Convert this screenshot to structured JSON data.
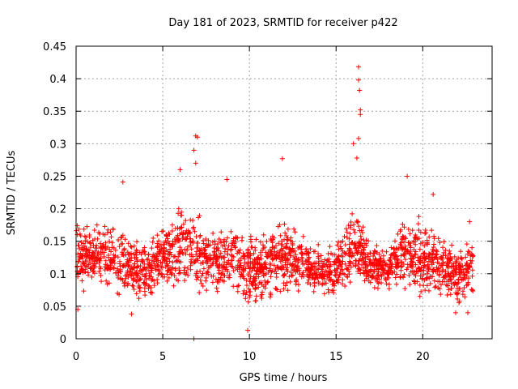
{
  "chart_data": {
    "type": "scatter",
    "title": "Day 181 of 2023, SRMTID for receiver p422",
    "xlabel": "GPS time / hours",
    "ylabel": "SRMTID / TECUs",
    "xlim": [
      0,
      24
    ],
    "ylim": [
      0,
      0.45
    ],
    "xticks": [
      0,
      5,
      10,
      15,
      20
    ],
    "yticks": [
      0,
      0.05,
      0.1,
      0.15,
      0.2,
      0.25,
      0.3,
      0.35,
      0.4,
      0.45
    ],
    "xtick_labels": [
      "0",
      "5",
      "10",
      "15",
      "20"
    ],
    "ytick_labels": [
      "0",
      "0.05",
      "0.1",
      "0.15",
      "0.2",
      "0.25",
      "0.3",
      "0.35",
      "0.4",
      "0.45"
    ],
    "grid": true,
    "marker": "+",
    "color": "#ff0000",
    "x_extent_hours": [
      0,
      22.9
    ],
    "notable_points": [
      {
        "x": 6.8,
        "y": 0.0
      },
      {
        "x": 9.9,
        "y": 0.013
      },
      {
        "x": 6.0,
        "y": 0.26
      },
      {
        "x": 6.9,
        "y": 0.312
      },
      {
        "x": 7.0,
        "y": 0.31
      },
      {
        "x": 6.8,
        "y": 0.29
      },
      {
        "x": 6.9,
        "y": 0.27
      },
      {
        "x": 8.7,
        "y": 0.245
      },
      {
        "x": 11.9,
        "y": 0.277
      },
      {
        "x": 16.3,
        "y": 0.418
      },
      {
        "x": 16.3,
        "y": 0.398
      },
      {
        "x": 16.35,
        "y": 0.382
      },
      {
        "x": 16.4,
        "y": 0.352
      },
      {
        "x": 16.4,
        "y": 0.345
      },
      {
        "x": 16.3,
        "y": 0.308
      },
      {
        "x": 16.2,
        "y": 0.278
      },
      {
        "x": 16.0,
        "y": 0.3
      },
      {
        "x": 2.7,
        "y": 0.241
      },
      {
        "x": 19.1,
        "y": 0.25
      },
      {
        "x": 20.6,
        "y": 0.222
      },
      {
        "x": 22.7,
        "y": 0.18
      },
      {
        "x": 22.6,
        "y": 0.04
      },
      {
        "x": 21.9,
        "y": 0.04
      },
      {
        "x": 3.2,
        "y": 0.038
      },
      {
        "x": 0.1,
        "y": 0.045
      }
    ],
    "envelope": {
      "description": "baseline spread (lo, hi) per hour",
      "hours": [
        0,
        1,
        2,
        3,
        4,
        5,
        6,
        7,
        8,
        9,
        10,
        11,
        12,
        13,
        14,
        15,
        16,
        17,
        18,
        19,
        20,
        21,
        22,
        22.9
      ],
      "lo": [
        0.06,
        0.07,
        0.06,
        0.05,
        0.05,
        0.07,
        0.06,
        0.06,
        0.07,
        0.06,
        0.04,
        0.05,
        0.06,
        0.06,
        0.06,
        0.06,
        0.07,
        0.06,
        0.07,
        0.06,
        0.05,
        0.06,
        0.04,
        0.06
      ],
      "hi": [
        0.19,
        0.18,
        0.2,
        0.17,
        0.15,
        0.19,
        0.22,
        0.2,
        0.17,
        0.2,
        0.17,
        0.17,
        0.2,
        0.17,
        0.15,
        0.15,
        0.23,
        0.16,
        0.15,
        0.21,
        0.19,
        0.17,
        0.15,
        0.16
      ],
      "points_per_hour": 95
    }
  }
}
